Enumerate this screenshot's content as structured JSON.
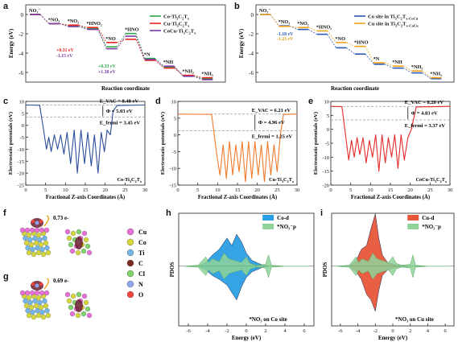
{
  "panel_labels": [
    "a",
    "b",
    "c",
    "d",
    "e",
    "f",
    "g",
    "h",
    "i"
  ],
  "colors": {
    "co": "#2aa84a",
    "cu": "#e8241f",
    "coco": "#7b3aa5",
    "b_co": "#2b58b5",
    "b_cu": "#f0a21a",
    "pot_c": "#2c4e9c",
    "pot_d": "#f07a2a",
    "pot_e": "#e32a2a",
    "co_d": "#2a9ee3",
    "cu_d": "#e8563a",
    "no3p": "#8fd39a"
  },
  "chart_data": [
    {
      "panel": "a",
      "type": "line",
      "ylabel": "Energy (eV)",
      "xlabel": "Reaction coordinate",
      "ylim": [
        -7,
        1
      ],
      "yticks": [
        0,
        -2,
        -4,
        -6
      ],
      "step_style": "staircase",
      "series": [
        {
          "name": "Co-Ti3C2Tx",
          "values": [
            0,
            -0.95,
            -1.15,
            -1.45,
            -3.35,
            -1.97,
            -4.55,
            -5.45,
            -6.35,
            -6.65
          ]
        },
        {
          "name": "Cu-Ti3C2Tx",
          "values": [
            0,
            -0.95,
            -1.1,
            -1.35,
            -2.9,
            -2.57,
            -4.75,
            -5.55,
            -6.3,
            -6.55
          ]
        },
        {
          "name": "CoCu-Ti3C2Tx",
          "values": [
            0,
            -0.95,
            -1.25,
            -1.55,
            -3.55,
            -2.25,
            -4.65,
            -5.35,
            -6.4,
            -6.75
          ]
        }
      ],
      "states": [
        "NO3-",
        "*NO3",
        "*NO2",
        "*HNO2",
        "*NO",
        "*HNO",
        "*N",
        "*NH",
        "*NH2",
        "*NH3"
      ],
      "annotations": [
        "+0.31 eV",
        "-1.15 eV",
        "+0.33 eV",
        "+1.38 eV"
      ]
    },
    {
      "panel": "b",
      "type": "line",
      "ylabel": "Energy (eV)",
      "xlabel": "Reaction coordinate",
      "ylim": [
        -7,
        1
      ],
      "yticks": [
        0,
        -2,
        -4,
        -6
      ],
      "series": [
        {
          "name": "Co site in Ti3C2Tx-CoCu",
          "values": [
            0,
            -1.18,
            -1.55,
            -2.05,
            -3.45,
            -4.1,
            -5.15,
            -5.55,
            -6.05,
            -6.65
          ]
        },
        {
          "name": "Cu site in Ti3C2Tx-CoCu",
          "values": [
            0,
            -1.23,
            -1.35,
            -1.7,
            -2.9,
            -3.3,
            -5.0,
            -5.35,
            -5.85,
            -6.55
          ]
        }
      ],
      "states": [
        "NO3-",
        "*NO3",
        "*NO2",
        "*HNO2",
        "*NO",
        "*HNO",
        "*N",
        "*NH",
        "*NH2",
        "*NH3"
      ],
      "annotations": [
        "-1.18 eV",
        "-1.23 eV"
      ]
    },
    {
      "panel": "c",
      "type": "line",
      "ylabel": "Electrostatic potentials (eV)",
      "xlabel": "Fractional Z-axis Coordinates (Å)",
      "xlim": [
        0,
        30
      ],
      "xticks": [
        0,
        5,
        10,
        15,
        20,
        25,
        30
      ],
      "ylim": [
        -25,
        10
      ],
      "yticks": [
        10,
        5,
        0,
        -5,
        -10,
        -15,
        -20,
        -25
      ],
      "series": [
        {
          "name": "",
          "x": [
            0,
            3.5,
            4.5,
            5.2,
            5.8,
            6.4,
            7.2,
            8.0,
            8.8,
            9.6,
            10.4,
            11.3,
            12.2,
            13.0,
            13.9,
            14.8,
            15.6,
            16.5,
            17.3,
            18.2,
            19.0,
            19.8,
            20.5,
            21.3,
            22.0,
            23.0,
            30
          ],
          "y": [
            8.48,
            8.4,
            -2,
            -10,
            -5,
            -11,
            -4,
            -10,
            -4,
            -12,
            -3,
            -16,
            -2,
            -20,
            -2,
            -16,
            -3,
            -17,
            -4,
            -20,
            -3,
            -11,
            -2,
            -4,
            6,
            8.3,
            8.48
          ]
        }
      ],
      "annotations": {
        "evac": "E_VAC = 8.48 eV",
        "phi": "Φ = 5.03 eV",
        "efermi": "E_fermi = 3.45 eV",
        "material": "Co-Ti3C2Tx"
      },
      "dashed_levels": [
        8.48,
        3.45
      ]
    },
    {
      "panel": "d",
      "type": "line",
      "ylabel": "Electrostatic potentials (eV)",
      "xlabel": "Fractional Z-axis Coordinates (Å)",
      "xlim": [
        0,
        30
      ],
      "xticks": [
        0,
        5,
        10,
        15,
        20,
        25,
        30
      ],
      "ylim": [
        -15,
        10
      ],
      "yticks": [
        10,
        5,
        0,
        -5,
        -10,
        -15
      ],
      "series": [
        {
          "name": "",
          "x": [
            0,
            8.5,
            9.8,
            10.6,
            11.4,
            12.2,
            13.0,
            13.8,
            14.6,
            15.4,
            16.2,
            17.0,
            17.8,
            18.6,
            19.4,
            20.2,
            21.0,
            21.8,
            22.6,
            23.4,
            24.2,
            25.0,
            25.8,
            26.6,
            30
          ],
          "y": [
            6.21,
            6.1,
            -6,
            -12,
            -3,
            -13,
            -2,
            -12,
            -3,
            -11,
            -2,
            -14,
            -2,
            -13,
            -2,
            -12,
            -3,
            -14,
            -2,
            -12,
            -3,
            -11,
            0,
            6.1,
            6.21
          ]
        }
      ],
      "annotations": {
        "evac": "E_VAC = 6.21 eV",
        "phi": "Φ = 4.96 eV",
        "efermi": "E_fermi = 1.25 eV",
        "material": "Cu-Ti3C2Tx"
      },
      "dashed_levels": [
        6.21,
        1.25
      ]
    },
    {
      "panel": "e",
      "type": "line",
      "ylabel": "Electrostatic potentials (eV)",
      "xlabel": "Fractional Z-axis Coordinates (Å)",
      "xlim": [
        0,
        30
      ],
      "xticks": [
        0,
        5,
        10,
        15,
        20,
        25,
        30
      ],
      "ylim": [
        -20,
        10
      ],
      "yticks": [
        10,
        5,
        0,
        -5,
        -10,
        -15,
        -20
      ],
      "series": [
        {
          "name": "",
          "x": [
            0,
            2.8,
            3.8,
            4.5,
            5.2,
            5.9,
            6.6,
            7.3,
            8.1,
            8.9,
            9.7,
            10.5,
            11.3,
            12.1,
            12.9,
            13.7,
            14.5,
            15.3,
            16.1,
            16.9,
            17.7,
            18.5,
            19.4,
            20.3,
            21.5,
            30
          ],
          "y": [
            8.2,
            8.1,
            -3,
            -11,
            -4,
            -10,
            -3,
            -9,
            -3,
            -12,
            -4,
            -10,
            -2,
            -15,
            -2,
            -12,
            -3,
            -10,
            -2,
            -14,
            -2,
            -11,
            -3,
            0,
            8.0,
            8.2
          ]
        }
      ],
      "annotations": {
        "evac": "E_VAC = 8.20 eV",
        "phi": "Φ = 4.83 eV",
        "efermi": "E_fermi = 3.37 eV",
        "material": "CoCu-Ti3C2Tx"
      },
      "dashed_levels": [
        8.2,
        3.37
      ]
    },
    {
      "panel": "h",
      "type": "area",
      "ylabel": "PDOS",
      "xlabel": "Energy (eV)",
      "xlim": [
        -7,
        7
      ],
      "xticks": [
        -6,
        -4,
        -2,
        0,
        2,
        4,
        6
      ],
      "series": [
        {
          "name": "Co-d"
        },
        {
          "name": "*NO3-p"
        }
      ],
      "caption": "*NO3 on Co site"
    },
    {
      "panel": "i",
      "type": "area",
      "ylabel": "PDOS",
      "xlabel": "Energy (eV)",
      "xlim": [
        -7,
        7
      ],
      "xticks": [
        -6,
        -4,
        -2,
        0,
        2,
        4,
        6
      ],
      "series": [
        {
          "name": "Cu-d"
        },
        {
          "name": "*NO3-p"
        }
      ],
      "caption": "*NO3 on Cu site"
    }
  ],
  "structures": {
    "f_transfer": "0.73 e-",
    "g_transfer": "0.69 e-",
    "element_legend": [
      {
        "label": "Cu",
        "color": "#e86fd6"
      },
      {
        "label": "Co",
        "color": "#d4d63a"
      },
      {
        "label": "Ti",
        "color": "#72b6e8"
      },
      {
        "label": "C",
        "color": "#7a2a1f"
      },
      {
        "label": "Cl",
        "color": "#7ed46a"
      },
      {
        "label": "N",
        "color": "#8fa6ec"
      },
      {
        "label": "O",
        "color": "#f4443a"
      }
    ]
  }
}
